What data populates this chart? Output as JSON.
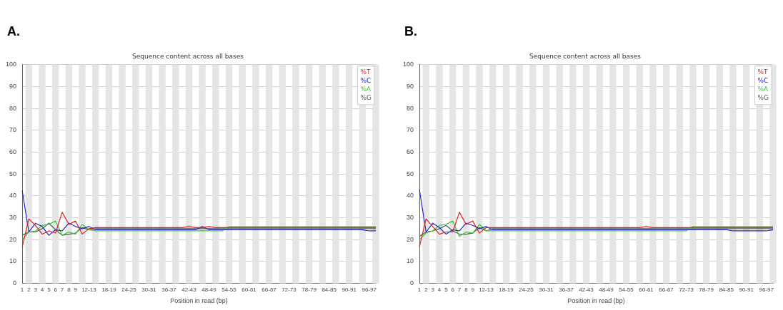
{
  "chart_data": [
    {
      "type": "line",
      "title": "Sequence content across all bases",
      "xlabel": "Position in read (bp)",
      "annotations": [
        "A."
      ],
      "categories": [
        "1",
        "2",
        "3",
        "4",
        "5",
        "6",
        "7",
        "8",
        "9",
        null,
        "12-13",
        null,
        null,
        "18-19",
        null,
        null,
        "24-25",
        null,
        null,
        "30-31",
        null,
        null,
        "36-37",
        null,
        null,
        "42-43",
        null,
        null,
        "48-49",
        null,
        null,
        "54-55",
        null,
        null,
        "60-61",
        null,
        null,
        "66-67",
        null,
        null,
        "72-73",
        null,
        null,
        "78-79",
        null,
        null,
        "84-85",
        null,
        null,
        "90-91",
        null,
        null,
        "96-97",
        null
      ],
      "series": [
        {
          "name": "%T",
          "color": "#dd2222",
          "values": [
            16.5,
            29.5,
            26.5,
            22.5,
            24,
            23,
            32.5,
            27,
            28.5,
            22.5,
            25,
            25.5,
            25.5,
            25.5,
            25.5,
            25.5,
            25.5,
            25.5,
            25.5,
            25.5,
            25.5,
            25.5,
            25.5,
            25.5,
            25.5,
            26,
            25.5,
            25.5,
            26,
            25.5,
            25.5,
            25.5,
            25.5,
            25.5,
            25.5,
            25.5,
            25.5,
            25.5,
            25.5,
            25.5,
            25.5,
            25.5,
            25.5,
            25.5,
            25.5,
            25.5,
            25.5,
            25.5,
            25.5,
            25.5,
            25.5,
            25.5,
            25.5,
            25.5
          ]
        },
        {
          "name": "%C",
          "color": "#2222cc",
          "values": [
            42.5,
            23.5,
            27.5,
            26,
            22,
            24.5,
            24,
            27.5,
            26,
            25,
            26,
            24.5,
            24.5,
            24.5,
            24.5,
            24.5,
            24.5,
            24.5,
            24.5,
            24.5,
            24.5,
            24.5,
            24.5,
            24.5,
            24.5,
            24.5,
            24.5,
            26,
            24.5,
            24.5,
            24.5,
            24.5,
            24.5,
            24.5,
            24.5,
            24.5,
            24.5,
            24.5,
            24.5,
            24.5,
            24.5,
            24.5,
            24.5,
            24.5,
            24.5,
            24.5,
            24.5,
            24.5,
            24.5,
            24.5,
            24.5,
            24.5,
            24,
            24
          ]
        },
        {
          "name": "%A",
          "color": "#33cc33",
          "values": [
            20,
            23.5,
            24,
            26.5,
            27,
            28.5,
            22,
            23.5,
            22.5,
            27,
            24.5,
            24,
            24,
            24,
            24,
            24,
            24,
            24,
            24,
            24,
            24,
            24,
            24,
            24,
            24,
            24,
            24,
            24,
            24,
            24,
            24,
            26,
            26,
            26,
            26,
            26,
            26,
            26,
            26,
            26,
            26,
            26,
            26,
            26,
            26,
            26,
            26,
            26,
            26,
            26,
            26,
            26,
            26,
            26
          ]
        },
        {
          "name": "%G",
          "color": "#555555",
          "values": [
            22,
            23.5,
            23.5,
            25,
            27.5,
            24.5,
            22,
            22.5,
            23,
            25.5,
            24.5,
            25,
            25,
            25,
            25,
            25,
            25,
            25,
            25,
            25,
            25,
            25,
            25,
            25,
            25,
            25,
            25,
            25,
            25,
            25,
            25,
            25,
            25,
            25,
            25,
            25,
            25,
            25,
            25,
            25,
            25,
            25,
            25,
            25,
            25,
            25,
            25,
            25,
            25,
            25,
            25,
            25,
            25,
            25
          ]
        }
      ],
      "ylim": [
        0,
        100
      ],
      "yticks": [
        0,
        10,
        20,
        30,
        40,
        50,
        60,
        70,
        80,
        90,
        100
      ],
      "grid": "y",
      "legend": "top right",
      "marker": "none",
      "line_style": "solid"
    },
    {
      "type": "line",
      "title": "Sequence content across all bases",
      "xlabel": "Position in read (bp)",
      "annotations": [
        "B."
      ],
      "categories": [
        "1",
        "2",
        "3",
        "4",
        "5",
        "6",
        "7",
        "8",
        "9",
        null,
        "12-13",
        null,
        null,
        "18-19",
        null,
        null,
        "24-25",
        null,
        null,
        "30-31",
        null,
        null,
        "36-37",
        null,
        null,
        "42-43",
        null,
        null,
        "48-49",
        null,
        null,
        "54-55",
        null,
        null,
        "60-61",
        null,
        null,
        "66-67",
        null,
        null,
        "72-73",
        null,
        null,
        "78-79",
        null,
        null,
        "84-85",
        null,
        null,
        "90-91",
        null,
        null,
        "96-97",
        null
      ],
      "series": [
        {
          "name": "%T",
          "color": "#dd2222",
          "values": [
            16.5,
            29.5,
            26,
            22.5,
            23.5,
            23.5,
            32.5,
            27,
            28.5,
            23,
            25.5,
            25.5,
            25.5,
            25.5,
            25.5,
            25.5,
            25.5,
            25.5,
            25.5,
            25.5,
            25.5,
            25.5,
            25.5,
            25.5,
            25.5,
            25.5,
            25.5,
            25.5,
            25.5,
            25.5,
            25.5,
            25.5,
            25.5,
            25.5,
            26,
            25.5,
            25.5,
            25.5,
            25.5,
            25.5,
            25.5,
            25.5,
            25.5,
            25.5,
            25.5,
            25.5,
            25.5,
            25.5,
            25.5,
            25.5,
            25.5,
            25.5,
            25.5,
            25.5
          ]
        },
        {
          "name": "%C",
          "color": "#2222cc",
          "values": [
            43,
            23.5,
            27.5,
            25.5,
            22.5,
            24.5,
            24,
            27.5,
            26.5,
            25,
            26,
            24.5,
            24.5,
            24.5,
            24.5,
            24.5,
            24.5,
            24.5,
            24.5,
            24.5,
            24.5,
            24.5,
            24.5,
            24.5,
            24.5,
            24.5,
            24.5,
            24.5,
            24.5,
            24.5,
            24.5,
            24.5,
            24.5,
            24.5,
            24.5,
            24.5,
            24.5,
            24.5,
            24.5,
            24.5,
            24.5,
            24.5,
            24.5,
            24.5,
            24.5,
            24.5,
            24.5,
            24,
            24,
            24,
            24,
            24,
            24,
            24.5
          ]
        },
        {
          "name": "%A",
          "color": "#33cc33",
          "values": [
            20,
            23,
            24,
            26.5,
            27,
            28.5,
            21.5,
            23.5,
            23,
            27,
            24,
            24,
            24,
            24,
            24,
            24,
            24,
            24,
            24,
            24,
            24,
            24,
            24,
            24,
            24,
            24,
            24,
            24,
            24,
            24,
            24,
            24,
            24,
            24,
            24,
            24,
            24,
            24,
            24,
            24,
            24,
            26,
            26,
            26,
            26,
            26,
            26,
            26,
            26,
            26,
            26,
            26,
            26,
            26
          ]
        },
        {
          "name": "%G",
          "color": "#555555",
          "values": [
            21.5,
            23.5,
            24,
            25,
            26.5,
            24,
            22.5,
            22.5,
            23,
            25.5,
            24,
            25,
            25,
            25,
            25,
            25,
            25,
            25,
            25,
            25,
            25,
            25,
            25,
            25,
            25,
            25,
            25,
            25,
            25,
            25,
            25,
            25,
            25,
            25,
            25,
            25,
            25,
            25,
            25,
            25,
            25,
            25,
            25,
            25,
            25,
            25,
            25,
            25,
            25,
            25,
            25,
            25,
            25,
            25
          ]
        }
      ],
      "ylim": [
        0,
        100
      ],
      "yticks": [
        0,
        10,
        20,
        30,
        40,
        50,
        60,
        70,
        80,
        90,
        100
      ],
      "grid": "y",
      "legend": "top right",
      "marker": "none",
      "line_style": "solid"
    }
  ]
}
